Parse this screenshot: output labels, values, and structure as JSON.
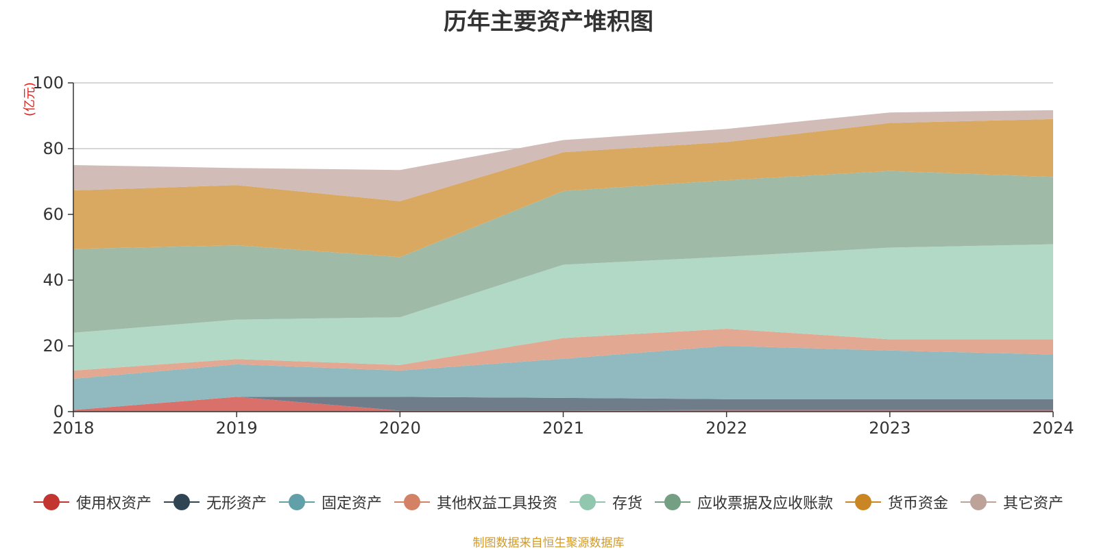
{
  "chart_data": {
    "type": "area",
    "stacked": true,
    "title": "历年主要资产堆积图",
    "unit": "(亿元)",
    "x": [
      "2018",
      "2019",
      "2020",
      "2021",
      "2022",
      "2023",
      "2024"
    ],
    "ylim": [
      0,
      100
    ],
    "yticks": [
      0,
      20,
      40,
      60,
      80,
      100
    ],
    "grid": true,
    "legend_position": "bottom",
    "series": [
      {
        "name": "使用权资产",
        "color": "#c23531",
        "fill": "#d9716a",
        "values": [
          0.5,
          4.5,
          0.3,
          0.3,
          0.5,
          0.5,
          0.5
        ]
      },
      {
        "name": "无形资产",
        "color": "#2f4554",
        "fill": "#6e7d89",
        "values": [
          0,
          0,
          4.2,
          3.9,
          3.3,
          3.3,
          3.3
        ]
      },
      {
        "name": "固定资产",
        "color": "#61a0a8",
        "fill": "#90babf",
        "values": [
          9.5,
          9.9,
          8.0,
          11.9,
          16.2,
          14.8,
          13.6
        ]
      },
      {
        "name": "其他权益工具投资",
        "color": "#d48265",
        "fill": "#e3a891",
        "values": [
          2.5,
          1.6,
          1.7,
          6.3,
          5.2,
          3.4,
          4.6
        ]
      },
      {
        "name": "存货",
        "color": "#91c7ae",
        "fill": "#b1d9c6",
        "values": [
          11.5,
          12.0,
          14.5,
          22.3,
          21.9,
          27.9,
          28.9
        ]
      },
      {
        "name": "应收票据及应收账款",
        "color": "#749f83",
        "fill": "#9fbba8",
        "values": [
          25.5,
          22.6,
          18.3,
          22.4,
          23.3,
          23.3,
          20.5
        ]
      },
      {
        "name": "货币资金",
        "color": "#ca8622",
        "fill": "#d9a961",
        "values": [
          17.8,
          18.3,
          17.0,
          11.8,
          11.6,
          14.6,
          17.6
        ]
      },
      {
        "name": "其它资产",
        "color": "#bda29a",
        "fill": "#d1bcb7",
        "values": [
          7.7,
          5.2,
          9.5,
          3.7,
          4.0,
          3.2,
          2.7
        ]
      }
    ]
  },
  "source_text": "制图数据来自恒生聚源数据库"
}
